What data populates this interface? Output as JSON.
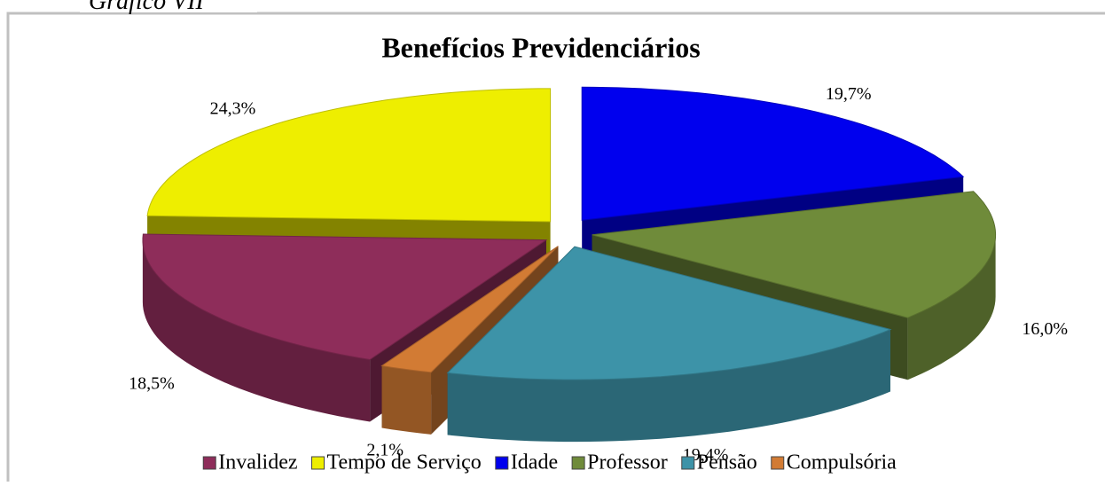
{
  "caption": "Gráfico VII",
  "chart_data": {
    "type": "pie",
    "title": "Benefícios Previdenciários",
    "categories": [
      "Invalidez",
      "Tempo de Serviço",
      "Idade",
      "Professor",
      "Pensão",
      "Compulsória"
    ],
    "values": [
      18.5,
      24.3,
      19.7,
      16.0,
      19.4,
      2.1
    ],
    "value_labels": [
      "18,5%",
      "24,3%",
      "19,7%",
      "16,0%",
      "19,4%",
      "2,1%"
    ],
    "colors": [
      "#8e2d5a",
      "#eeee00",
      "#0000ee",
      "#6f8b3a",
      "#3d93a8",
      "#d27b34"
    ],
    "legend": "bottom"
  }
}
